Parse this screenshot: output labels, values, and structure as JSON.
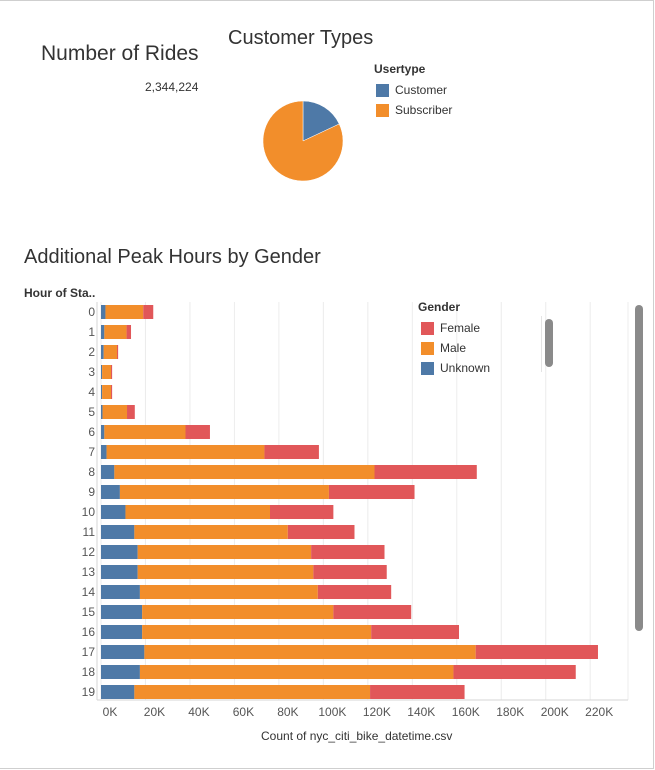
{
  "kpi": {
    "title": "Number of Rides",
    "value": "2,344,224"
  },
  "pie": {
    "title": "Customer Types",
    "legend_title": "Usertype",
    "legend": [
      {
        "label": "Customer",
        "color": "#4e79a7"
      },
      {
        "label": "Subscriber",
        "color": "#f28e2b"
      }
    ]
  },
  "bar_section": {
    "title": "Additional Peak Hours by Gender",
    "y_axis_title": "Hour of Sta..",
    "x_axis_title": "Count of nyc_citi_bike_datetime.csv",
    "legend_title": "Gender",
    "legend": [
      {
        "label": "Female",
        "color": "#e15759"
      },
      {
        "label": "Male",
        "color": "#f28e2b"
      },
      {
        "label": "Unknown",
        "color": "#4e79a7"
      }
    ]
  },
  "chart_data": [
    {
      "type": "pie",
      "title": "Customer Types",
      "categories": [
        "Customer",
        "Subscriber"
      ],
      "values": [
        18,
        82
      ],
      "colors": [
        "#4e79a7",
        "#f28e2b"
      ]
    },
    {
      "type": "bar",
      "orientation": "horizontal",
      "stacked": true,
      "title": "Additional Peak Hours by Gender",
      "ylabel": "Hour of Sta..",
      "xlabel": "Count of nyc_citi_bike_datetime.csv",
      "xlim": [
        0,
        237000
      ],
      "xticks": [
        0,
        20000,
        40000,
        60000,
        80000,
        100000,
        120000,
        140000,
        160000,
        180000,
        200000,
        220000
      ],
      "xtick_labels": [
        "0K",
        "20K",
        "40K",
        "60K",
        "80K",
        "100K",
        "120K",
        "140K",
        "160K",
        "180K",
        "200K",
        "220K"
      ],
      "categories": [
        "0",
        "1",
        "2",
        "3",
        "4",
        "5",
        "6",
        "7",
        "8",
        "9",
        "10",
        "11",
        "12",
        "13",
        "14",
        "15",
        "16",
        "17",
        "18",
        "19"
      ],
      "series": [
        {
          "name": "Unknown",
          "color": "#4e79a7",
          "values": [
            2000,
            1500,
            1200,
            500,
            500,
            700,
            1500,
            2500,
            6000,
            8500,
            11000,
            15000,
            16500,
            16500,
            17500,
            18500,
            18500,
            19500,
            17500,
            15000
          ]
        },
        {
          "name": "Male",
          "color": "#f28e2b",
          "values": [
            17000,
            10000,
            6000,
            4000,
            4000,
            11000,
            36500,
            71000,
            117000,
            94000,
            65000,
            69000,
            78000,
            79000,
            80000,
            86000,
            103000,
            149000,
            141000,
            106000
          ]
        },
        {
          "name": "Female",
          "color": "#e15759",
          "values": [
            4500,
            2000,
            500,
            500,
            500,
            3500,
            11000,
            24500,
            46000,
            38500,
            28500,
            30000,
            33000,
            33000,
            33000,
            35000,
            39500,
            55000,
            55000,
            42500
          ]
        }
      ]
    }
  ]
}
